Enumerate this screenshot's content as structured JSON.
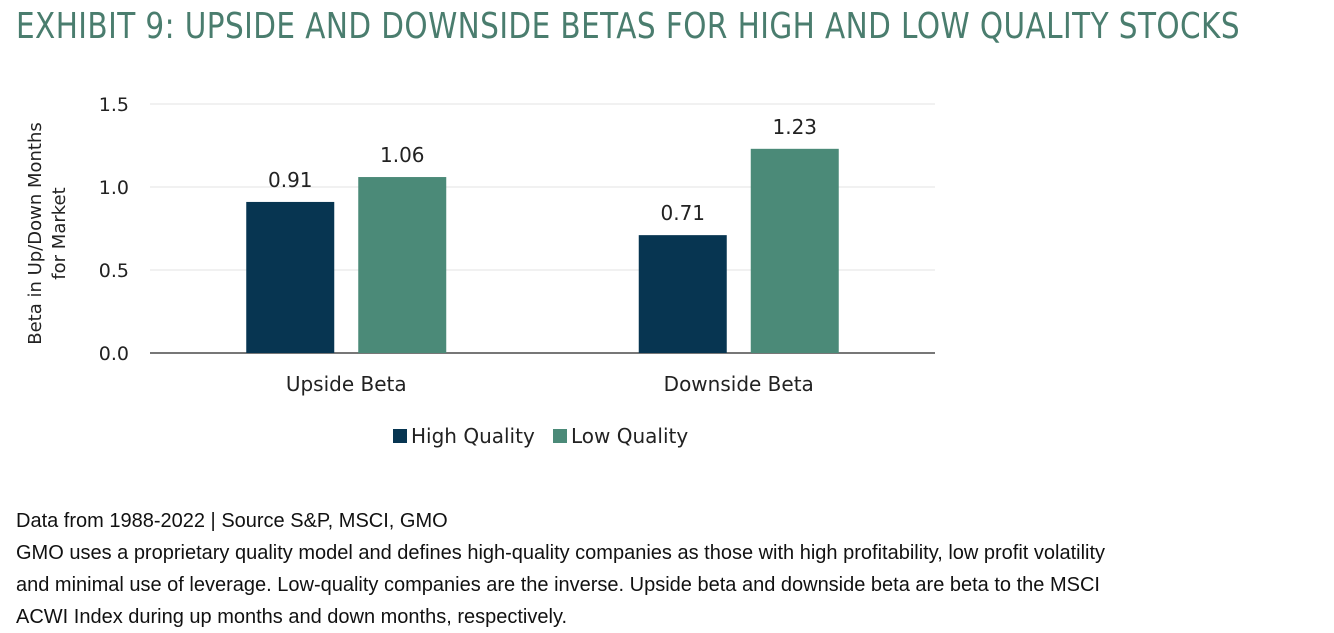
{
  "title": "EXHIBIT 9: UPSIDE AND DOWNSIDE BETAS FOR HIGH AND LOW QUALITY STOCKS",
  "chart_data": {
    "type": "bar",
    "categories": [
      "Upside Beta",
      "Downside Beta"
    ],
    "series": [
      {
        "name": "High Quality",
        "values": [
          0.91,
          0.71
        ],
        "color": "#073551"
      },
      {
        "name": "Low Quality",
        "values": [
          1.06,
          1.23
        ],
        "color": "#4b8a78"
      }
    ],
    "data_labels": [
      [
        "0.91",
        "0.71"
      ],
      [
        "1.06",
        "1.23"
      ]
    ],
    "ylabel": "Beta in Up/Down Months for Market",
    "ylabel_lines": [
      "Beta in Up/Down Months",
      "for Market"
    ],
    "ylim": [
      0,
      1.5
    ],
    "yticks": [
      0.0,
      0.5,
      1.0,
      1.5
    ],
    "ytick_labels": [
      "0.0",
      "0.5",
      "1.0",
      "1.5"
    ],
    "grid": true,
    "legend_position": "bottom-center"
  },
  "notes": {
    "line1": "Data from 1988-2022 | Source S&P, MSCI, GMO",
    "line2": "GMO uses a proprietary quality model and defines high-quality companies as those with high profitability, low profit volatility",
    "line3": "and minimal use of leverage. Low-quality companies are the inverse. Upside beta and downside beta are beta to the MSCI",
    "line4": "ACWI Index during up months and down months, respectively."
  }
}
